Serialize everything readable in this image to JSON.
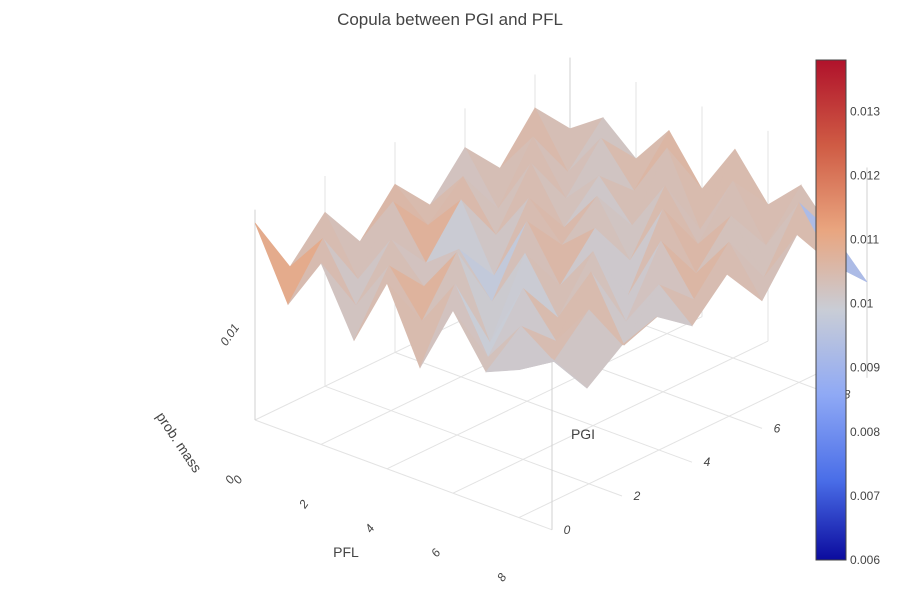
{
  "chart_data": {
    "type": "surface",
    "title": "Copula between PGI and PFL",
    "xlabel": "PFL",
    "ylabel": "PGI",
    "zlabel": "prob. mass",
    "x_ticks": [
      "0",
      "2",
      "4",
      "6",
      "8"
    ],
    "y_ticks": [
      "0",
      "2",
      "4",
      "6",
      "8"
    ],
    "z_ticks": [
      "0",
      "0.01"
    ],
    "x": [
      0,
      1,
      2,
      3,
      4,
      5,
      6,
      7,
      8,
      9
    ],
    "y": [
      0,
      1,
      2,
      3,
      4,
      5,
      6,
      7,
      8,
      9
    ],
    "z": [
      [
        0.0136,
        0.0088,
        0.0125,
        0.008,
        0.0128,
        0.0078,
        0.0126,
        0.0092,
        0.0102,
        0.0118
      ],
      [
        0.0094,
        0.0122,
        0.0084,
        0.012,
        0.009,
        0.0124,
        0.0082,
        0.0112,
        0.0096,
        0.0086
      ],
      [
        0.012,
        0.0082,
        0.0118,
        0.0094,
        0.0126,
        0.0072,
        0.0118,
        0.009,
        0.012,
        0.0104
      ],
      [
        0.0088,
        0.0124,
        0.009,
        0.0108,
        0.008,
        0.0122,
        0.0086,
        0.0126,
        0.0084,
        0.0112
      ],
      [
        0.0116,
        0.0096,
        0.0122,
        0.0078,
        0.0124,
        0.0088,
        0.012,
        0.008,
        0.0114,
        0.0094
      ],
      [
        0.009,
        0.0118,
        0.0086,
        0.012,
        0.0096,
        0.0116,
        0.0078,
        0.0124,
        0.0092,
        0.0118
      ],
      [
        0.0118,
        0.0084,
        0.0124,
        0.0088,
        0.0118,
        0.0082,
        0.0126,
        0.009,
        0.012,
        0.0088
      ],
      [
        0.0092,
        0.0122,
        0.0088,
        0.0112,
        0.0086,
        0.0122,
        0.009,
        0.0118,
        0.0084,
        0.0122
      ],
      [
        0.0122,
        0.0086,
        0.0118,
        0.009,
        0.0128,
        0.008,
        0.0122,
        0.0086,
        0.0124,
        0.009
      ],
      [
        0.0096,
        0.0112,
        0.0092,
        0.012,
        0.0088,
        0.0124,
        0.0094,
        0.0116,
        0.009,
        0.0066
      ]
    ],
    "zlim": [
      0,
      0.0145
    ],
    "colorscale": {
      "name": "coolwarm",
      "stops": [
        "#0b0b9e",
        "#4a6ee8",
        "#8fa9f5",
        "#c9cdd6",
        "#e9a57f",
        "#cf5b44",
        "#b0122b"
      ],
      "range": [
        0.006,
        0.0138
      ],
      "ticks": [
        "0.006",
        "0.007",
        "0.008",
        "0.009",
        "0.01",
        "0.011",
        "0.012",
        "0.013"
      ]
    }
  }
}
